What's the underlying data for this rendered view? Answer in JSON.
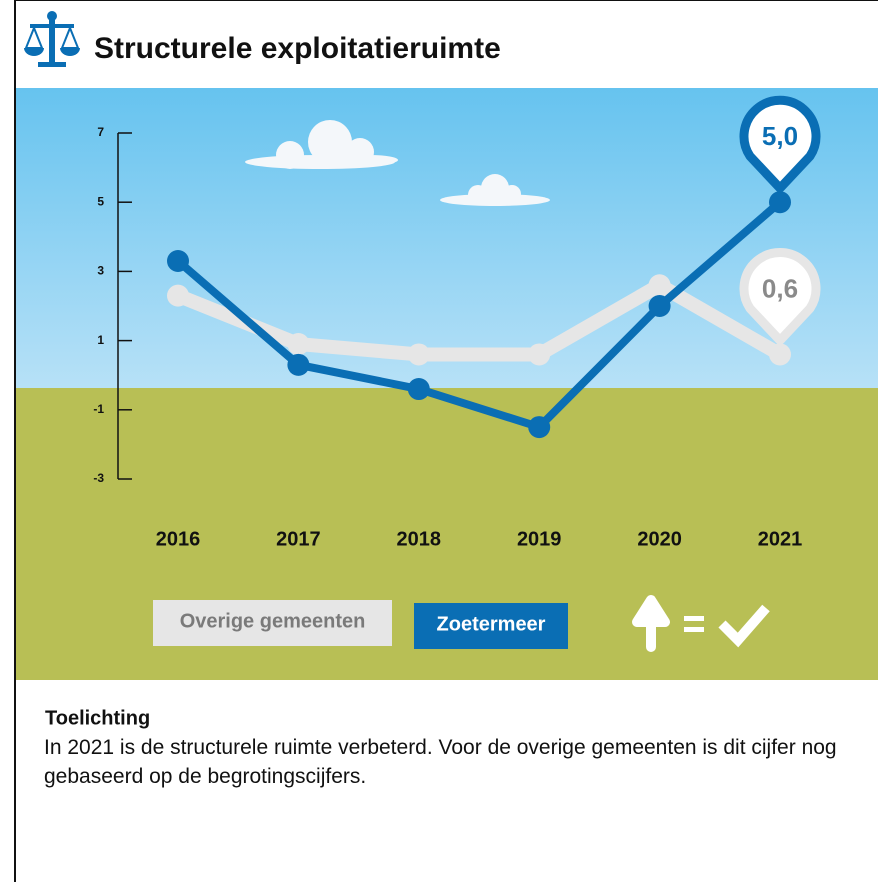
{
  "chart_data": {
    "type": "line",
    "title": "Structurele exploitatieruimte",
    "categories": [
      "2016",
      "2017",
      "2018",
      "2019",
      "2020",
      "2021"
    ],
    "series": [
      {
        "name": "Overige gemeenten",
        "color": "#e6e6e6",
        "values": [
          2.3,
          0.9,
          0.6,
          0.6,
          2.6,
          0.6
        ],
        "value_labels": [
          null,
          null,
          null,
          null,
          null,
          "0,6"
        ]
      },
      {
        "name": "Zoetermeer",
        "color": "#0a6eb4",
        "values": [
          3.3,
          0.3,
          -0.4,
          -1.5,
          2.0,
          5.0
        ],
        "value_labels": [
          null,
          null,
          null,
          null,
          null,
          "5,0"
        ]
      }
    ],
    "ylim": [
      -3,
      7
    ],
    "yticks": [
      -3,
      -1,
      1,
      3,
      5,
      7
    ],
    "grid": false,
    "note_title": "Toelichting",
    "note": "In 2021 is de structurele ruimte verbeterd. Voor de overige gemeenten is dit cijfer nog gebaseerd op de begrotingscijfers."
  }
}
